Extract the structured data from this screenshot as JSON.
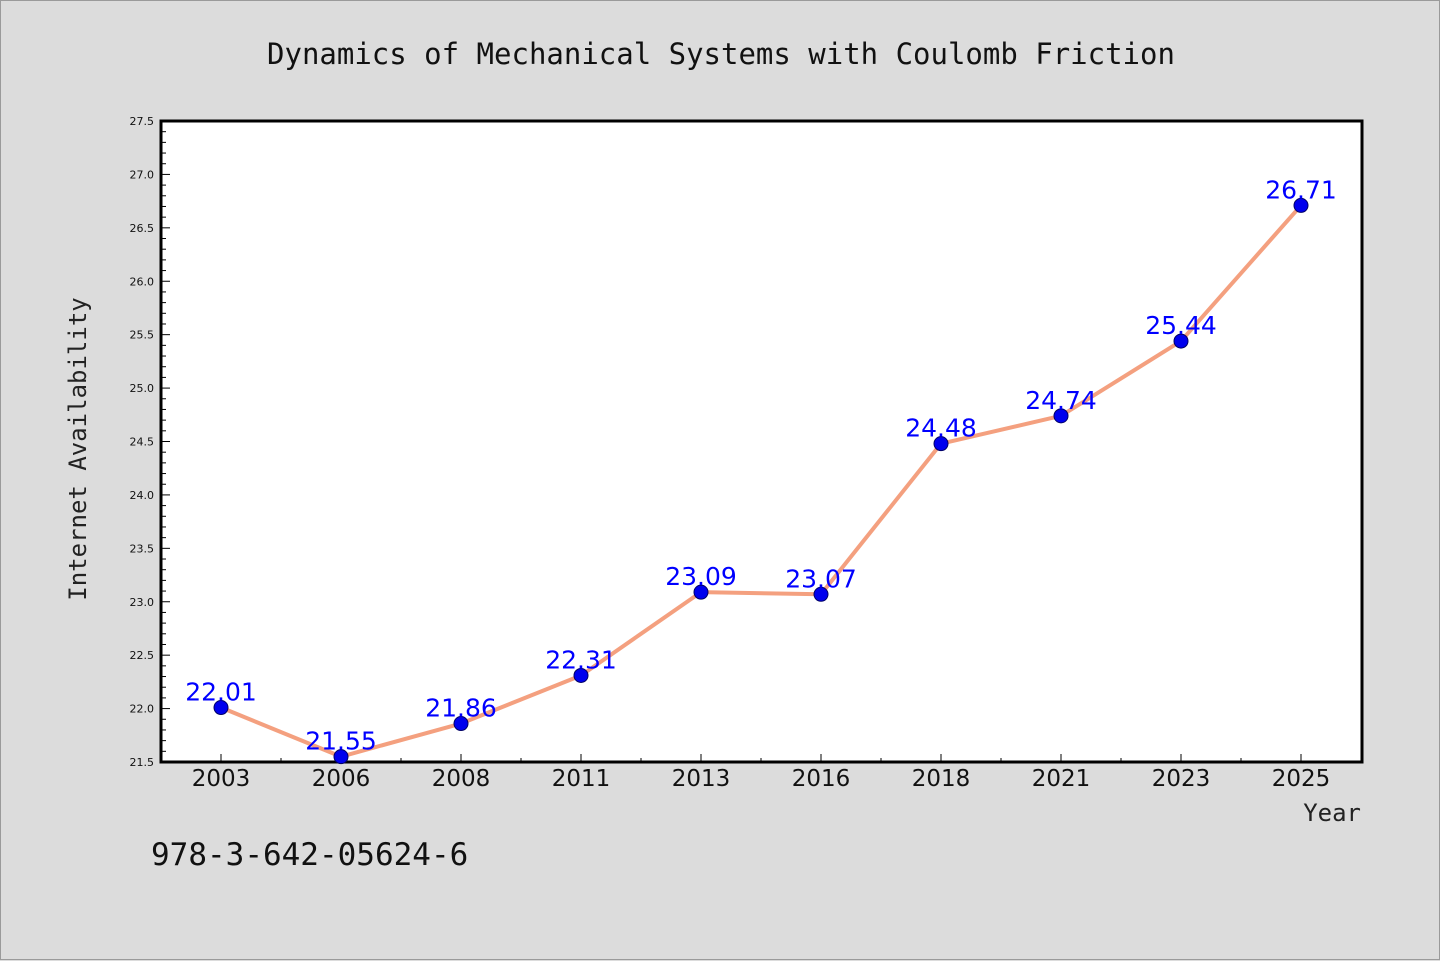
{
  "chart_data": {
    "type": "line",
    "title": "Dynamics of Mechanical Systems with Coulomb Friction",
    "xlabel": "Year",
    "ylabel": "Internet Availability",
    "categories": [
      "2003",
      "2006",
      "2008",
      "2011",
      "2013",
      "2016",
      "2018",
      "2021",
      "2023",
      "2025"
    ],
    "series": [
      {
        "values": [
          22.01,
          21.55,
          21.86,
          22.31,
          23.09,
          23.07,
          24.48,
          24.74,
          25.44,
          26.71
        ],
        "labels": [
          "22.01",
          "21.55",
          "21.86",
          "22.31",
          "23.09",
          "23.07",
          "24.48",
          "24.74",
          "25.44",
          "26.71"
        ]
      }
    ],
    "ylim": [
      21.5,
      27.5
    ],
    "yticks": [
      "21.5",
      "22.0",
      "22.5",
      "23.0",
      "23.5",
      "24.0",
      "24.5",
      "25.0",
      "25.5",
      "26.0",
      "26.5",
      "27.0",
      "27.5"
    ],
    "grid": false,
    "legend": "none",
    "colors": {
      "line": "#f4a07f",
      "marker": "#0000ee",
      "marker_edge": "#000066",
      "data_label": "#0000ff",
      "plot_bg": "#ffffff",
      "page_bg": "#dcdcdc"
    }
  },
  "annotation": {
    "text": "978-3-642-05624-6"
  }
}
